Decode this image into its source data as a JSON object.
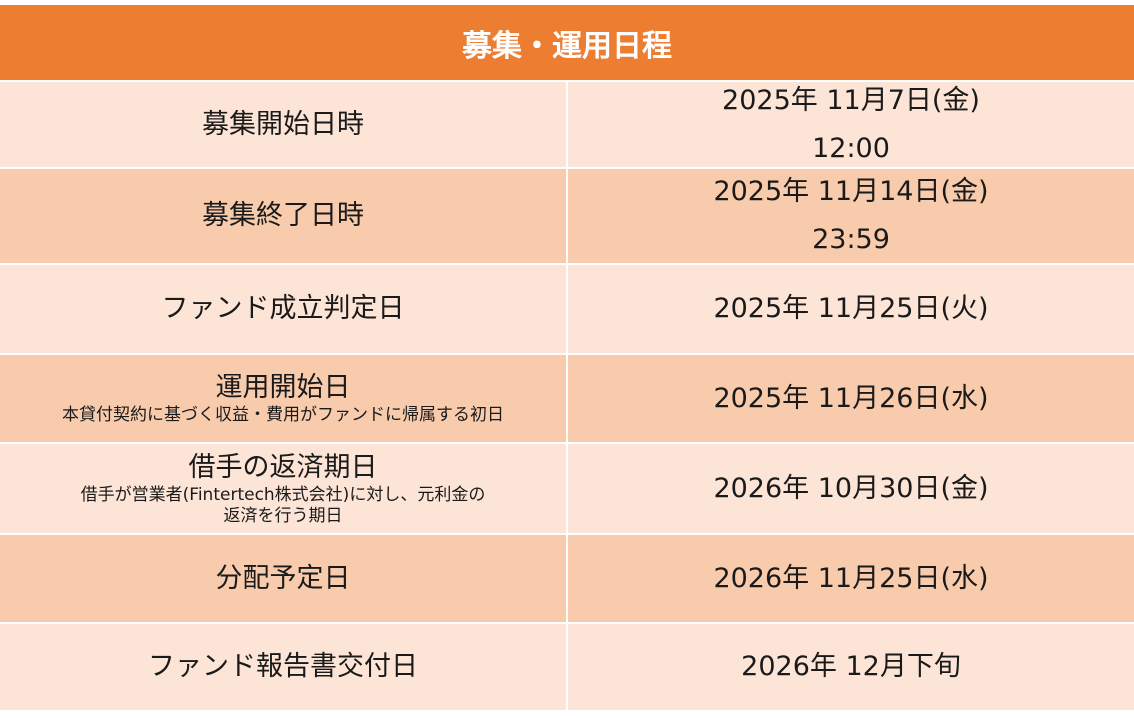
{
  "title": "募集・運用日程",
  "colors": {
    "header": "#ED7D31",
    "row_light": "#FCE4D6",
    "row_dark": "#F8CBAD"
  },
  "rows": [
    {
      "label": "募集開始日時",
      "note": "",
      "value": [
        "2025年 11月7日(金)",
        "12:00"
      ]
    },
    {
      "label": "募集終了日時",
      "note": "",
      "value": [
        "2025年 11月14日(金)",
        "23:59"
      ]
    },
    {
      "label": "ファンド成立判定日",
      "note": "",
      "value": [
        "2025年 11月25日(火)"
      ]
    },
    {
      "label": "運用開始日",
      "note": "本貸付契約に基づく収益・費用がファンドに帰属する初日",
      "value": [
        "2025年 11月26日(水)"
      ]
    },
    {
      "label": "借手の返済期日",
      "note": "借手が営業者(Fintertech株式会社)に対し、元利金の\n返済を行う期日",
      "value": [
        "2026年 10月30日(金)"
      ]
    },
    {
      "label": "分配予定日",
      "note": "",
      "value": [
        "2026年 11月25日(水)"
      ]
    },
    {
      "label": "ファンド報告書交付日",
      "note": "",
      "value": [
        "2026年 12月下旬"
      ]
    }
  ]
}
